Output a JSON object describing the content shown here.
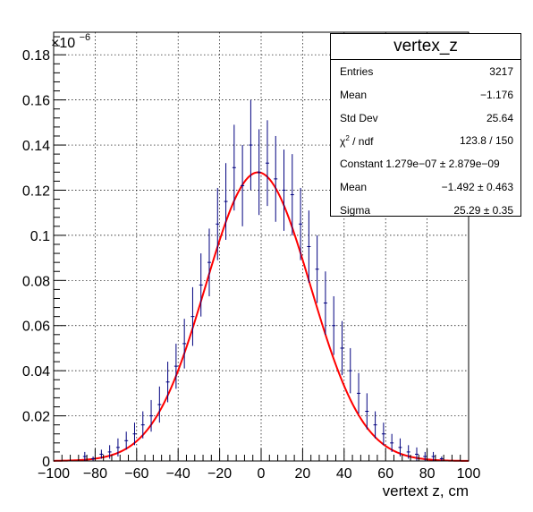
{
  "chart_data": {
    "type": "scatter",
    "histogram_name": "vertex_z",
    "xlabel": "vertext z, cm",
    "ylabel": "",
    "y_multiplier_label": "×10",
    "y_multiplier_exponent": "−6",
    "xlim": [
      -100,
      100
    ],
    "ylim": [
      0,
      0.19
    ],
    "x_ticks": [
      "−100",
      "−80",
      "−60",
      "−40",
      "−20",
      "0",
      "20",
      "40",
      "60",
      "80",
      "100"
    ],
    "y_ticks": [
      "0",
      "0.02",
      "0.04",
      "0.06",
      "0.08",
      "0.1",
      "0.12",
      "0.14",
      "0.16",
      "0.18"
    ],
    "grid": true,
    "stats_box_placement": "top-right",
    "series": [
      {
        "kind": "data-points-with-errors",
        "color": "#00007f",
        "x": [
          -85,
          -81,
          -77,
          -73,
          -69,
          -65,
          -61,
          -57,
          -53,
          -49,
          -45,
          -41,
          -37,
          -33,
          -29,
          -25,
          -21,
          -17,
          -13,
          -9,
          -5,
          -1,
          3,
          7,
          11,
          15,
          19,
          23,
          27,
          31,
          35,
          39,
          43,
          47,
          51,
          55,
          59,
          63,
          67,
          71,
          75,
          79,
          83,
          87
        ],
        "y": [
          0.002,
          0.001,
          0.003,
          0.004,
          0.006,
          0.009,
          0.012,
          0.016,
          0.02,
          0.025,
          0.035,
          0.042,
          0.052,
          0.064,
          0.078,
          0.088,
          0.105,
          0.115,
          0.13,
          0.122,
          0.14,
          0.128,
          0.132,
          0.125,
          0.12,
          0.118,
          0.105,
          0.095,
          0.085,
          0.07,
          0.06,
          0.05,
          0.04,
          0.03,
          0.022,
          0.016,
          0.012,
          0.008,
          0.006,
          0.004,
          0.003,
          0.002,
          0.002,
          0.001
        ],
        "y_err": [
          0.002,
          0.001,
          0.002,
          0.003,
          0.004,
          0.004,
          0.005,
          0.006,
          0.007,
          0.008,
          0.009,
          0.01,
          0.011,
          0.013,
          0.014,
          0.015,
          0.016,
          0.017,
          0.019,
          0.018,
          0.02,
          0.019,
          0.019,
          0.019,
          0.018,
          0.018,
          0.016,
          0.016,
          0.015,
          0.014,
          0.013,
          0.012,
          0.01,
          0.009,
          0.008,
          0.006,
          0.005,
          0.004,
          0.004,
          0.003,
          0.003,
          0.002,
          0.002,
          0.001
        ]
      },
      {
        "kind": "gaussian-fit",
        "color": "#ff0000",
        "constant": 1.279e-07,
        "mean": -1.492,
        "sigma": 25.29
      }
    ]
  },
  "stats": {
    "title": "vertex_z",
    "rows": [
      {
        "label": "Entries",
        "value": "3217"
      },
      {
        "label": "Mean",
        "value": "−1.176"
      },
      {
        "label": "Std Dev",
        "value": "25.64"
      }
    ],
    "chi2_label_main": "χ",
    "chi2_label_sup": "2",
    "chi2_label_rest": " / ndf",
    "chi2_value": "123.8 / 150",
    "constant_text": "Constant 1.279e−07 ± 2.879e−09",
    "fit_rows": [
      {
        "label": "Mean",
        "value": "−1.492 ± 0.463"
      },
      {
        "label": "Sigma",
        "value": "25.29 ± 0.35"
      }
    ]
  }
}
